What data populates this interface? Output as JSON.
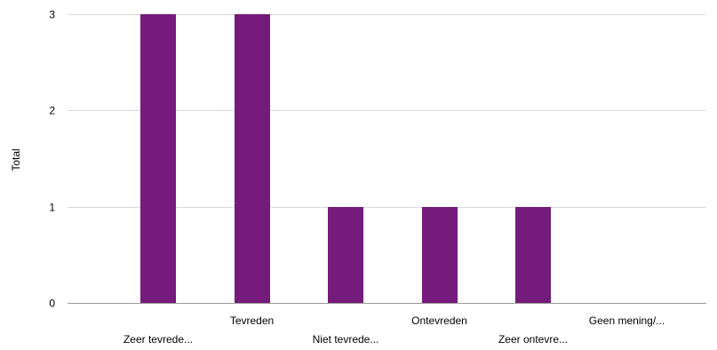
{
  "chart_data": {
    "type": "bar",
    "title": "",
    "xlabel": "",
    "ylabel": "Total",
    "categories": [
      "Zeer tevrede...",
      "Tevreden",
      "Niet tevrede...",
      "Ontevreden",
      "Zeer ontevre...",
      "Geen mening/..."
    ],
    "values": [
      3,
      3,
      1,
      1,
      1,
      0
    ],
    "ylim": [
      0,
      3
    ],
    "yticks": [
      0,
      1,
      2,
      3
    ],
    "grid": true,
    "legend": "none",
    "bar_color": "#741b7c",
    "grid_color": "#d9d9d9",
    "axis_color": "#999999"
  }
}
